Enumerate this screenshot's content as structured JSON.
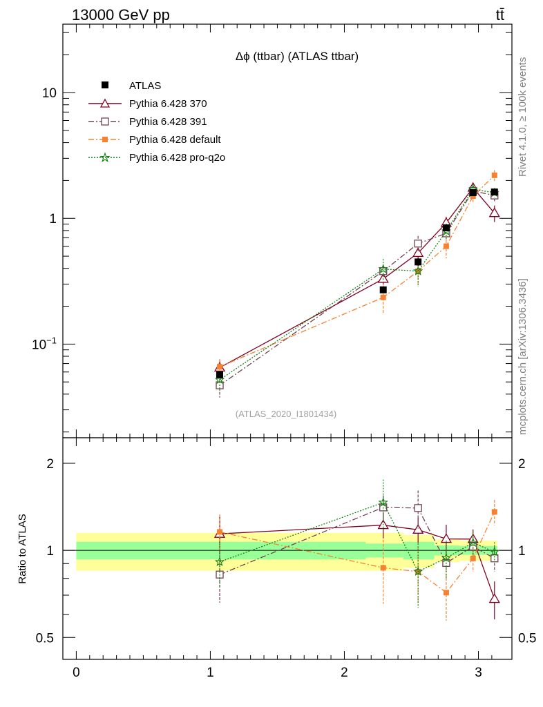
{
  "header": {
    "energy_label": "13000 GeV pp",
    "process_label": "tt̄"
  },
  "side_labels": {
    "rivet": "Rivet 4.1.0, ≥ 100k events",
    "mcplots": "mcplots.cern.ch [arXiv:1306.3436]"
  },
  "colors": {
    "atlas": "#000000",
    "p370": "#800020",
    "p391": "#704050",
    "pdefault": "#f58232",
    "pq2o": "#118011",
    "band_yellow": "#ffff99",
    "band_green": "#99ff99",
    "analysis_id_text": "#a0a0a0",
    "side_text": "#808080"
  },
  "chart_data": {
    "type": "line",
    "title": "Δϕ (ttbar) (ATLAS ttbar)",
    "analysis_id": "(ATLAS_2020_I1801434)",
    "xlabel": "",
    "ylabel": "",
    "ratio_ylabel": "Ratio to ATLAS",
    "xlim": [
      -0.1,
      3.25
    ],
    "ylim": [
      0.018,
      35
    ],
    "yscale": "log",
    "ratio_ylim": [
      0.42,
      2.45
    ],
    "ratio_yscale": "log",
    "x_ticks": [
      "0",
      "1",
      "2",
      "3"
    ],
    "y_ticks": [
      "10^-1",
      "1",
      "10"
    ],
    "ratio_ticks": [
      "0.5",
      "1",
      "2"
    ],
    "bins": [
      {
        "lo": 0.0,
        "hi": 2.16
      },
      {
        "lo": 2.16,
        "hi": 2.44
      },
      {
        "lo": 2.44,
        "hi": 2.67
      },
      {
        "lo": 2.67,
        "hi": 2.86
      },
      {
        "lo": 2.86,
        "hi": 3.05
      },
      {
        "lo": 3.05,
        "hi": 3.1416
      }
    ],
    "x": [
      1.07,
      2.29,
      2.55,
      2.76,
      2.96,
      3.12
    ],
    "data": {
      "name": "ATLAS",
      "values": [
        0.057,
        0.27,
        0.45,
        0.84,
        1.6,
        1.62
      ],
      "err_green": [
        0.07,
        0.055,
        0.07,
        0.04,
        0.035,
        0.035
      ],
      "err_yellow": [
        0.15,
        0.15,
        0.13,
        0.09,
        0.08,
        0.08
      ]
    },
    "series": [
      {
        "name": "Pythia 6.428 370",
        "key": "p370",
        "values": [
          0.065,
          0.33,
          0.53,
          0.92,
          1.75,
          1.1
        ],
        "rel_err": [
          0.15,
          0.1,
          0.1,
          0.12,
          0.08,
          0.15
        ],
        "style": "solid",
        "marker": "triangle"
      },
      {
        "name": "Pythia 6.428 391",
        "key": "p391",
        "values": [
          0.047,
          0.38,
          0.63,
          0.76,
          1.65,
          1.52
        ],
        "rel_err": [
          0.2,
          0.1,
          0.15,
          0.12,
          0.08,
          0.1
        ],
        "style": "dashdot",
        "marker": "square-open"
      },
      {
        "name": "Pythia 6.428 default",
        "key": "pdefault",
        "values": [
          0.066,
          0.235,
          0.38,
          0.6,
          1.5,
          2.2
        ],
        "rel_err": [
          0.15,
          0.25,
          0.22,
          0.2,
          0.1,
          0.1
        ],
        "style": "dashdot",
        "marker": "square-filled"
      },
      {
        "name": "Pythia 6.428 pro-q2o",
        "key": "pq2o",
        "values": [
          0.052,
          0.395,
          0.38,
          0.79,
          1.7,
          1.6
        ],
        "rel_err": [
          0.18,
          0.2,
          0.25,
          0.15,
          0.1,
          0.08
        ],
        "style": "dotted",
        "marker": "star"
      }
    ]
  }
}
